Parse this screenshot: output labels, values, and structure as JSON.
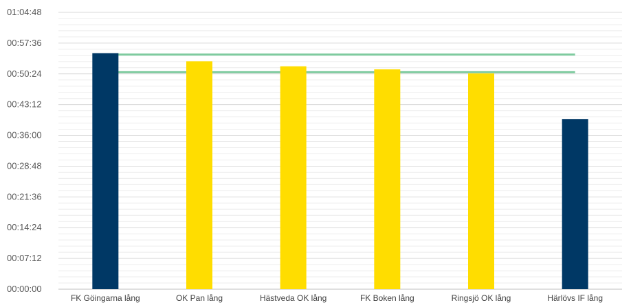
{
  "chart_data": {
    "type": "bar",
    "title": "",
    "xlabel": "",
    "ylabel": "",
    "categories": [
      "FK Göingarna lång",
      "OK Pan lång",
      "Hästveda OK lång",
      "FK Boken lång",
      "Ringsjö OK lång",
      "Härlövs IF lång"
    ],
    "values_seconds": [
      3315,
      3201,
      3130,
      3087,
      3030,
      2387
    ],
    "values": [
      "00:55:15",
      "00:53:21",
      "00:52:10",
      "00:51:27",
      "00:50:30",
      "00:39:47"
    ],
    "bar_colors": [
      "#003865",
      "#FFDD00",
      "#FFDD00",
      "#FFDD00",
      "#FFDD00",
      "#003865"
    ],
    "reference_lines_seconds": [
      3295,
      3047
    ],
    "reference_line_color": "#7fcb9f",
    "y_ticks": [
      "00:00:00",
      "00:07:12",
      "00:14:24",
      "00:21:36",
      "00:28:48",
      "00:36:00",
      "00:43:12",
      "00:50:24",
      "00:57:36",
      "01:04:48"
    ],
    "ylim_seconds": [
      0,
      3888
    ],
    "major_tick_step_seconds": 432,
    "grid": true,
    "minor_grid": true,
    "legend": "none"
  }
}
